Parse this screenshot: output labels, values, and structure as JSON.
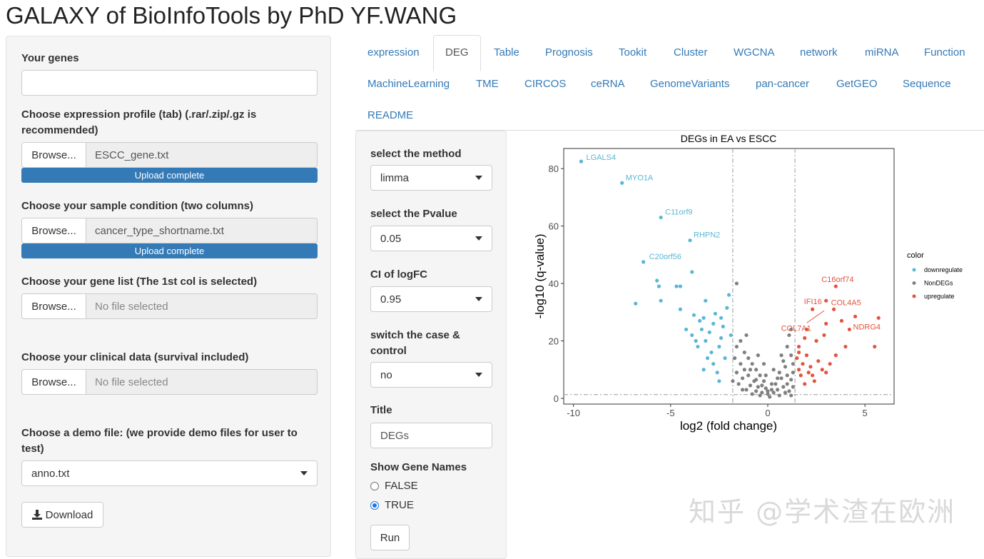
{
  "app": {
    "title": "GALAXY of BioInfoTools by PhD YF.WANG"
  },
  "sidebar": {
    "your_genes_label": "Your genes",
    "your_genes_value": "",
    "expression_label": "Choose expression profile (tab) (.rar/.zip/.gz is recommended)",
    "expression_file": "ESCC_gene.txt",
    "expression_progress": "Upload complete",
    "condition_label": "Choose your sample condition (two columns)",
    "condition_file": "cancer_type_shortname.txt",
    "condition_progress": "Upload complete",
    "genelist_label": "Choose your gene list (The 1st col is selected)",
    "genelist_file": "No file selected",
    "clinical_label": "Choose your clinical data (survival included)",
    "clinical_file": "No file selected",
    "demo_label": "Choose a demo file: (we provide demo files for user to test)",
    "demo_value": "anno.txt",
    "browse_label": "Browse...",
    "download_label": "Download"
  },
  "tabs": [
    "expression",
    "DEG",
    "Table",
    "Prognosis",
    "Tookit",
    "Cluster",
    "WGCNA",
    "network",
    "miRNA",
    "Function",
    "MachineLearning",
    "TME",
    "CIRCOS",
    "ceRNA",
    "GenomeVariants",
    "pan-cancer",
    "GetGEO",
    "Sequence",
    "README"
  ],
  "active_tab": "DEG",
  "controls": {
    "method_label": "select the method",
    "method_value": "limma",
    "pvalue_label": "select the Pvalue",
    "pvalue_value": "0.05",
    "ci_label": "CI of logFC",
    "ci_value": "0.95",
    "switch_label": "switch the case & control",
    "switch_value": "no",
    "title_label": "Title",
    "title_value": "DEGs",
    "show_names_label": "Show Gene Names",
    "opt_false": "FALSE",
    "opt_true": "TRUE",
    "selected": "TRUE",
    "run_label": "Run"
  },
  "watermark": "知乎 @学术渣在欧洲",
  "chart_data": {
    "type": "scatter",
    "title": "DEGs in EA vs ESCC",
    "xlabel": "log2 (fold change)",
    "ylabel": "-log10 (q-value)",
    "xlim": [
      -10.5,
      6.5
    ],
    "ylim": [
      -2,
      87
    ],
    "xticks": [
      -10,
      -5,
      0,
      5
    ],
    "yticks": [
      0,
      20,
      40,
      60,
      80
    ],
    "thresholds": {
      "logfc": [
        -1.8,
        1.4
      ],
      "y": 1.3
    },
    "legend": {
      "title": "color",
      "position": "right",
      "items": [
        "downregulate",
        "NonDEGs",
        "upregulate"
      ]
    },
    "colors": {
      "downregulate": "#5ab7d3",
      "NonDEGs": "#808080",
      "upregulate": "#e0553f"
    },
    "series": [
      {
        "name": "downregulate",
        "color": "#5ab7d3",
        "points": [
          [
            -9.6,
            82.5
          ],
          [
            -7.5,
            75
          ],
          [
            -5.5,
            63
          ],
          [
            -4,
            55
          ],
          [
            -6.4,
            47.5
          ],
          [
            -5.7,
            41
          ],
          [
            -5.6,
            39
          ],
          [
            -3.9,
            44
          ],
          [
            -4.5,
            39
          ],
          [
            -5.5,
            34
          ],
          [
            -4.5,
            31
          ],
          [
            -4.7,
            39
          ],
          [
            -6.8,
            33
          ],
          [
            -3.2,
            34
          ],
          [
            -2,
            36
          ],
          [
            -2.1,
            31.5
          ],
          [
            -3.8,
            29
          ],
          [
            -3.3,
            28
          ],
          [
            -2.4,
            28
          ],
          [
            -2.7,
            29.5
          ],
          [
            -3.5,
            27
          ],
          [
            -4.2,
            24
          ],
          [
            -3,
            23
          ],
          [
            -2.3,
            25
          ],
          [
            -3.9,
            22
          ],
          [
            -3.2,
            20
          ],
          [
            -2.5,
            18
          ],
          [
            -2.9,
            16
          ],
          [
            -3.6,
            18
          ],
          [
            -2.4,
            21
          ],
          [
            -3.1,
            14
          ],
          [
            -2.8,
            12
          ],
          [
            -3.3,
            10
          ],
          [
            -2.6,
            9
          ],
          [
            -2.2,
            14
          ],
          [
            -2.5,
            6
          ],
          [
            -1.9,
            22
          ],
          [
            -3.4,
            24
          ],
          [
            -2.8,
            26
          ],
          [
            -3.7,
            20
          ]
        ]
      },
      {
        "name": "upregulate",
        "color": "#e0553f",
        "points": [
          [
            3.5,
            39
          ],
          [
            3.0,
            34
          ],
          [
            2.3,
            31
          ],
          [
            3.4,
            31
          ],
          [
            4.5,
            28.5
          ],
          [
            5.7,
            28
          ],
          [
            3.0,
            26
          ],
          [
            3.8,
            27
          ],
          [
            4.2,
            24
          ],
          [
            2.9,
            22
          ],
          [
            2.0,
            24
          ],
          [
            2.5,
            20
          ],
          [
            1.9,
            21
          ],
          [
            5.5,
            18
          ],
          [
            1.6,
            16
          ],
          [
            2.0,
            15
          ],
          [
            3.5,
            15
          ],
          [
            2.6,
            13
          ],
          [
            1.8,
            12
          ],
          [
            2.2,
            11
          ],
          [
            2.8,
            10
          ],
          [
            1.6,
            10
          ],
          [
            3.0,
            9
          ],
          [
            2.3,
            8
          ],
          [
            1.7,
            8
          ],
          [
            1.5,
            14
          ],
          [
            1.9,
            5
          ],
          [
            2.4,
            6
          ],
          [
            3.2,
            12
          ],
          [
            4.0,
            18
          ],
          [
            1.6,
            18
          ],
          [
            2.1,
            9
          ]
        ]
      },
      {
        "name": "NonDEGs",
        "color": "#808080",
        "points": [
          [
            -1.6,
            18
          ],
          [
            -1.2,
            16
          ],
          [
            -1.0,
            14
          ],
          [
            -1.4,
            12
          ],
          [
            -0.8,
            12
          ],
          [
            -1.2,
            10
          ],
          [
            -0.6,
            10
          ],
          [
            -1.6,
            9
          ],
          [
            -1.0,
            8
          ],
          [
            -0.4,
            8
          ],
          [
            -1.3,
            7
          ],
          [
            -0.7,
            6
          ],
          [
            -0.2,
            6
          ],
          [
            -1.5,
            5
          ],
          [
            -0.9,
            4.5
          ],
          [
            -0.5,
            4
          ],
          [
            -0.1,
            3.5
          ],
          [
            -1.1,
            3
          ],
          [
            -0.6,
            2.5
          ],
          [
            -0.3,
            2
          ],
          [
            0,
            1.5
          ],
          [
            0.3,
            2
          ],
          [
            0.5,
            3
          ],
          [
            0.8,
            4
          ],
          [
            1.0,
            5
          ],
          [
            1.2,
            6.5
          ],
          [
            1.0,
            8
          ],
          [
            1.3,
            9
          ],
          [
            0.7,
            7
          ],
          [
            0.4,
            5
          ],
          [
            0.2,
            3
          ],
          [
            -0.4,
            1
          ],
          [
            0.1,
            0.5
          ],
          [
            -0.8,
            1.5
          ],
          [
            0.6,
            1
          ],
          [
            1.1,
            2.5
          ],
          [
            1.3,
            12
          ],
          [
            1.2,
            15
          ],
          [
            1.0,
            18
          ],
          [
            0.9,
            11
          ],
          [
            0.6,
            9
          ],
          [
            -1.7,
            14
          ],
          [
            -1.4,
            20
          ],
          [
            -1.1,
            22
          ],
          [
            -0.5,
            15
          ],
          [
            -0.2,
            12
          ],
          [
            0.3,
            10
          ],
          [
            -1.3,
            3
          ],
          [
            1.2,
            1
          ],
          [
            -0.9,
            10
          ],
          [
            0.8,
            13
          ],
          [
            0.5,
            7
          ],
          [
            -0.1,
            8
          ],
          [
            -1.8,
            6
          ],
          [
            1.3,
            4
          ],
          [
            -1.6,
            40
          ],
          [
            1.1,
            22
          ],
          [
            1.2,
            24
          ],
          [
            0.7,
            15
          ],
          [
            -0.3,
            4.5
          ],
          [
            0.2,
            5
          ],
          [
            0.0,
            2.5
          ],
          [
            -0.6,
            6.5
          ],
          [
            0.9,
            2
          ]
        ]
      }
    ],
    "labels": [
      {
        "gene": "LGALS4",
        "x": -9.6,
        "y": 82.5,
        "color": "#5ab7d3"
      },
      {
        "gene": "MYO1A",
        "x": -7.5,
        "y": 75,
        "color": "#5ab7d3"
      },
      {
        "gene": "C11orf9",
        "x": -5.5,
        "y": 63,
        "color": "#5ab7d3"
      },
      {
        "gene": "RHPN2",
        "x": -4,
        "y": 55,
        "color": "#5ab7d3"
      },
      {
        "gene": "C20orf56",
        "x": -6.4,
        "y": 47.5,
        "color": "#5ab7d3"
      },
      {
        "gene": "C16orf74",
        "x": 3.5,
        "y": 39,
        "color": "#e0553f"
      },
      {
        "gene": "IFI16",
        "x": 3.0,
        "y": 34,
        "color": "#e0553f"
      },
      {
        "gene": "COL4A5",
        "x": 3.4,
        "y": 31,
        "color": "#e0553f"
      },
      {
        "gene": "COL7A1",
        "x": 2.3,
        "y": 31,
        "color": "#e0553f"
      },
      {
        "gene": "NDRG4",
        "x": 4.5,
        "y": 28.5,
        "color": "#e0553f"
      }
    ]
  }
}
